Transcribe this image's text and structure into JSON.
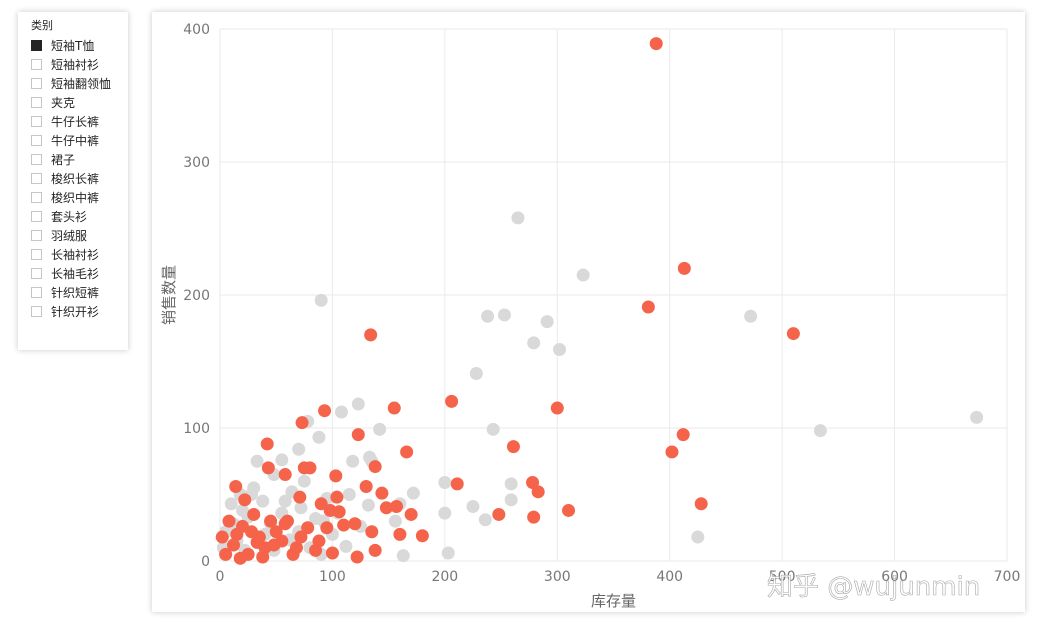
{
  "slicer": {
    "title": "类别",
    "items": [
      {
        "label": "短袖T恤",
        "checked": true
      },
      {
        "label": "短袖衬衫",
        "checked": false
      },
      {
        "label": "短袖翻领恤",
        "checked": false
      },
      {
        "label": "夹克",
        "checked": false
      },
      {
        "label": "牛仔长裤",
        "checked": false
      },
      {
        "label": "牛仔中裤",
        "checked": false
      },
      {
        "label": "裙子",
        "checked": false
      },
      {
        "label": "梭织长裤",
        "checked": false
      },
      {
        "label": "梭织中裤",
        "checked": false
      },
      {
        "label": "套头衫",
        "checked": false
      },
      {
        "label": "羽绒服",
        "checked": false
      },
      {
        "label": "长袖衬衫",
        "checked": false
      },
      {
        "label": "长袖毛衫",
        "checked": false
      },
      {
        "label": "针织短裤",
        "checked": false
      },
      {
        "label": "针织开衫",
        "checked": false
      }
    ]
  },
  "watermark": "知乎 @wujunmin",
  "chart_data": {
    "type": "scatter",
    "xlabel": "库存量",
    "ylabel": "销售数量",
    "xlim": [
      0,
      700
    ],
    "ylim": [
      0,
      400
    ],
    "xticks": [
      "0",
      "100",
      "200",
      "300",
      "400",
      "500",
      "600",
      "700"
    ],
    "yticks": [
      "0",
      "100",
      "200",
      "300",
      "400"
    ],
    "grid": true,
    "colors": {
      "highlight": "#f4634a",
      "other": "#d9d9d9"
    },
    "series": [
      {
        "highlighted": false,
        "points": [
          [
            265,
            258
          ],
          [
            323,
            215
          ],
          [
            90,
            196
          ],
          [
            472,
            184
          ],
          [
            253,
            185
          ],
          [
            238,
            184
          ],
          [
            291,
            180
          ],
          [
            279,
            164
          ],
          [
            302,
            159
          ],
          [
            228,
            141
          ],
          [
            673,
            108
          ],
          [
            534,
            98
          ],
          [
            243,
            99
          ],
          [
            123,
            118
          ],
          [
            108,
            112
          ],
          [
            142,
            99
          ],
          [
            78,
            105
          ],
          [
            88,
            93
          ],
          [
            70,
            84
          ],
          [
            55,
            76
          ],
          [
            33,
            75
          ],
          [
            48,
            65
          ],
          [
            133,
            78
          ],
          [
            118,
            75
          ],
          [
            135,
            75
          ],
          [
            200,
            59
          ],
          [
            259,
            58
          ],
          [
            172,
            51
          ],
          [
            160,
            43
          ],
          [
            200,
            36
          ],
          [
            225,
            41
          ],
          [
            236,
            31
          ],
          [
            259,
            46
          ],
          [
            156,
            30
          ],
          [
            203,
            6
          ],
          [
            425,
            18
          ],
          [
            163,
            4
          ],
          [
            125,
            26
          ],
          [
            85,
            32
          ],
          [
            64,
            52
          ],
          [
            38,
            45
          ],
          [
            25,
            33
          ],
          [
            10,
            43
          ],
          [
            5,
            22
          ],
          [
            15,
            15
          ],
          [
            22,
            8
          ],
          [
            45,
            28
          ],
          [
            62,
            16
          ],
          [
            72,
            40
          ],
          [
            95,
            47
          ],
          [
            105,
            36
          ],
          [
            112,
            11
          ],
          [
            90,
            5
          ],
          [
            30,
            55
          ],
          [
            20,
            38
          ],
          [
            55,
            36
          ],
          [
            70,
            22
          ],
          [
            80,
            10
          ],
          [
            100,
            20
          ],
          [
            115,
            50
          ],
          [
            48,
            8
          ],
          [
            40,
            20
          ],
          [
            28,
            50
          ],
          [
            12,
            28
          ],
          [
            58,
            45
          ],
          [
            3,
            10
          ],
          [
            18,
            50
          ],
          [
            75,
            60
          ],
          [
            92,
            30
          ],
          [
            132,
            42
          ]
        ]
      },
      {
        "highlighted": true,
        "points": [
          [
            388,
            389
          ],
          [
            413,
            220
          ],
          [
            381,
            191
          ],
          [
            510,
            171
          ],
          [
            134,
            170
          ],
          [
            155,
            115
          ],
          [
            300,
            115
          ],
          [
            206,
            120
          ],
          [
            93,
            113
          ],
          [
            73,
            104
          ],
          [
            123,
            95
          ],
          [
            412,
            95
          ],
          [
            261,
            86
          ],
          [
            402,
            82
          ],
          [
            42,
            88
          ],
          [
            166,
            82
          ],
          [
            75,
            70
          ],
          [
            138,
            71
          ],
          [
            80,
            70
          ],
          [
            43,
            70
          ],
          [
            58,
            65
          ],
          [
            103,
            64
          ],
          [
            14,
            56
          ],
          [
            130,
            56
          ],
          [
            211,
            58
          ],
          [
            278,
            59
          ],
          [
            22,
            46
          ],
          [
            104,
            48
          ],
          [
            71,
            48
          ],
          [
            144,
            51
          ],
          [
            283,
            52
          ],
          [
            90,
            43
          ],
          [
            98,
            38
          ],
          [
            148,
            40
          ],
          [
            157,
            41
          ],
          [
            170,
            35
          ],
          [
            310,
            38
          ],
          [
            248,
            35
          ],
          [
            279,
            33
          ],
          [
            428,
            43
          ],
          [
            106,
            37
          ],
          [
            110,
            27
          ],
          [
            120,
            28
          ],
          [
            135,
            22
          ],
          [
            160,
            20
          ],
          [
            180,
            19
          ],
          [
            95,
            25
          ],
          [
            60,
            30
          ],
          [
            50,
            22
          ],
          [
            35,
            18
          ],
          [
            20,
            26
          ],
          [
            8,
            30
          ],
          [
            12,
            12
          ],
          [
            25,
            5
          ],
          [
            30,
            35
          ],
          [
            40,
            10
          ],
          [
            45,
            30
          ],
          [
            55,
            15
          ],
          [
            65,
            5
          ],
          [
            72,
            18
          ],
          [
            85,
            8
          ],
          [
            100,
            6
          ],
          [
            122,
            3
          ],
          [
            138,
            8
          ],
          [
            5,
            5
          ],
          [
            15,
            20
          ],
          [
            28,
            22
          ],
          [
            38,
            3
          ],
          [
            48,
            12
          ],
          [
            58,
            28
          ],
          [
            68,
            10
          ],
          [
            78,
            25
          ],
          [
            88,
            15
          ],
          [
            18,
            2
          ],
          [
            33,
            14
          ],
          [
            2,
            18
          ]
        ]
      }
    ]
  }
}
